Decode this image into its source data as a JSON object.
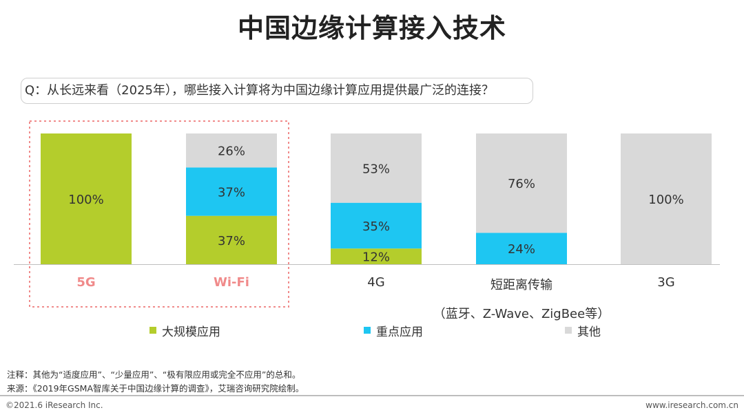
{
  "header": {
    "title": "中国边缘计算接入技术",
    "question": "Q：从长远来看（2025年），哪些接入计算将为中国边缘计算应用提供最广泛的连接？"
  },
  "colors": {
    "green": "#b4cd2c",
    "blue": "#1ec6f2",
    "gray": "#d9d9d9",
    "highlight": "#f08a8a",
    "dash": "#f08a8a"
  },
  "chart_data": {
    "type": "bar",
    "stacked": true,
    "percent": true,
    "categories": [
      "5G",
      "Wi-Fi",
      "4G",
      "短距离传输",
      "3G"
    ],
    "category_sublabels": [
      "",
      "",
      "",
      "（蓝牙、Z-Wave、ZigBee等）",
      ""
    ],
    "highlighted_categories": [
      "5G",
      "Wi-Fi"
    ],
    "series": [
      {
        "name": "大规模应用",
        "color": "#b4cd2c",
        "values": [
          100,
          37,
          12,
          0,
          0
        ]
      },
      {
        "name": "重点应用",
        "color": "#1ec6f2",
        "values": [
          0,
          37,
          35,
          24,
          0
        ]
      },
      {
        "name": "其他",
        "color": "#d9d9d9",
        "values": [
          0,
          26,
          53,
          76,
          100
        ]
      }
    ],
    "ylim": [
      0,
      100
    ],
    "grid": false,
    "legend_position": "bottom"
  },
  "notes": {
    "note": "注释：其他为“适度应用”、“少量应用”、“极有限应用或完全不应用”的总和。",
    "source": "来源：《2019年GSMA智库关于中国边缘计算的调查》，艾瑞咨询研究院绘制。"
  },
  "footer": {
    "left": "©2021.6 iResearch Inc.",
    "right": "www.iresearch.com.cn"
  }
}
